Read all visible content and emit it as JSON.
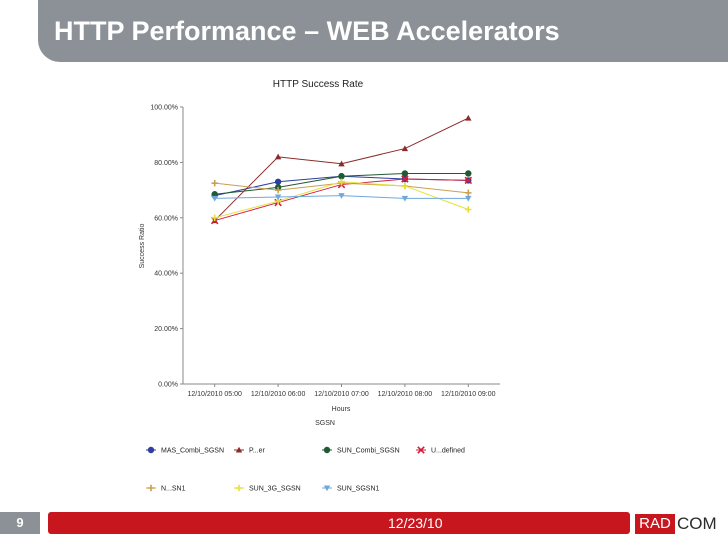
{
  "slide": {
    "title": "HTTP Performance – WEB Accelerators",
    "number": "9",
    "date": "12/23/10",
    "logo_left": "RAD",
    "logo_right": "COM"
  },
  "colors": {
    "title_bar": "#8b9196",
    "footer_accent": "#c8161e"
  },
  "chart_data": {
    "type": "line",
    "title": "HTTP Success Rate",
    "xlabel": "Hours",
    "ylabel": "Success Ratio",
    "group_label": "SGSN",
    "ylim": [
      0,
      100
    ],
    "yticks": [
      "0.00%",
      "20.00%",
      "40.00%",
      "60.00%",
      "80.00%",
      "100.00%"
    ],
    "grid": false,
    "legend_position": "bottom",
    "categories": [
      "12/10/2010 05:00",
      "12/10/2010 06:00",
      "12/10/2010 07:00",
      "12/10/2010 08:00",
      "12/10/2010 09:00"
    ],
    "series": [
      {
        "name": "MAS_Combi_SGSN",
        "color": "#2e3f9e",
        "marker": "circle",
        "values": [
          68,
          73,
          75,
          74,
          73.5
        ]
      },
      {
        "name": "P...er",
        "color": "#8b2a2a",
        "marker": "triangle",
        "values": [
          59,
          82,
          79.5,
          85,
          96
        ]
      },
      {
        "name": "SUN_Combi_SGSN",
        "color": "#1f5a32",
        "marker": "circle",
        "values": [
          68.5,
          71,
          75,
          76,
          76
        ]
      },
      {
        "name": "U...defined",
        "color": "#d21f3c",
        "marker": "x",
        "values": [
          59,
          65.5,
          72,
          74,
          73.5
        ]
      },
      {
        "name": "N...SN1",
        "color": "#c8a050",
        "marker": "plus",
        "values": [
          72.5,
          70,
          72.5,
          71.5,
          69
        ]
      },
      {
        "name": "SUN_3G_SGSN",
        "color": "#e6df3a",
        "marker": "plus",
        "values": [
          60,
          66,
          73,
          71.5,
          63
        ]
      },
      {
        "name": "SUN_SGSN1",
        "color": "#6fa8dc",
        "marker": "triangle-down",
        "values": [
          67,
          67.5,
          68,
          67,
          67
        ]
      }
    ]
  }
}
